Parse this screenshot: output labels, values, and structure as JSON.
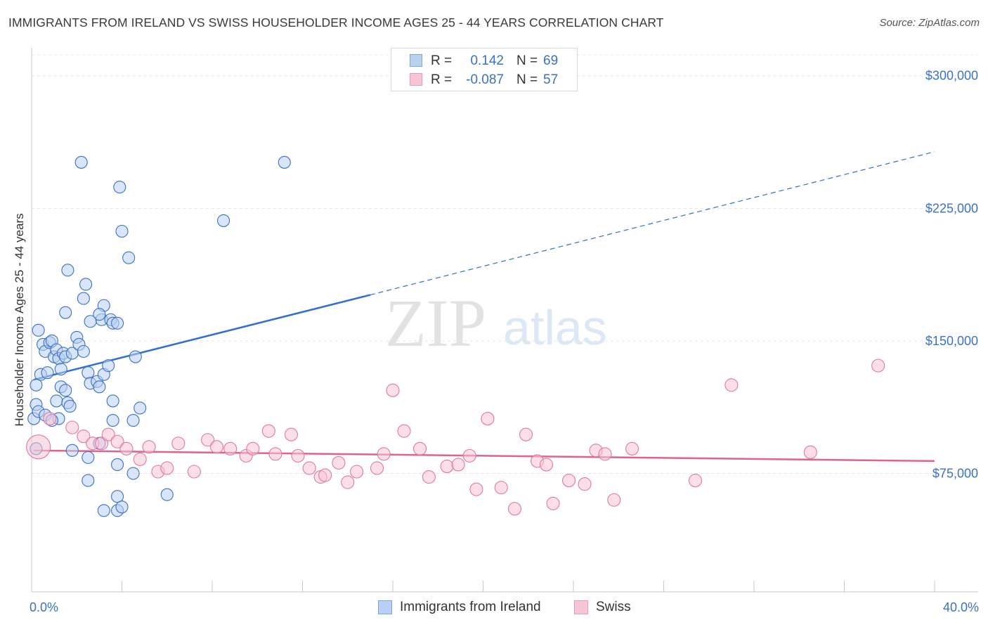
{
  "title": "IMMIGRANTS FROM IRELAND VS SWISS HOUSEHOLDER INCOME AGES 25 - 44 YEARS CORRELATION CHART",
  "source": "Source: ZipAtlas.com",
  "watermark": {
    "zip": "ZIP",
    "atlas": "atlas"
  },
  "colors": {
    "blue": "#3b72c4",
    "blue_fill": "#b9d0f3",
    "blue_line": "#3070d0",
    "pink": "#e0799d",
    "pink_fill": "#f8c5d5",
    "pink_line": "#e0628f"
  },
  "legend_top": {
    "rows": [
      {
        "r_label": "R =",
        "r_value": "0.142",
        "n_label": "N =",
        "n_value": "69"
      },
      {
        "r_label": "R =",
        "r_value": "-0.087",
        "n_label": "N =",
        "n_value": "57"
      }
    ]
  },
  "legend_bottom": {
    "items": [
      {
        "label": "Immigrants from Ireland"
      },
      {
        "label": "Swiss"
      }
    ]
  },
  "chart_data": {
    "type": "scatter",
    "title": "IMMIGRANTS FROM IRELAND VS SWISS HOUSEHOLDER INCOME AGES 25 - 44 YEARS CORRELATION CHART",
    "xlabel": "",
    "ylabel": "Householder Income Ages 25 - 44 years",
    "xlim": [
      0,
      40
    ],
    "ylim": [
      8000,
      315000
    ],
    "x_tick_labels": [
      {
        "value": 0,
        "label": "0.0%"
      },
      {
        "value": 40,
        "label": "40.0%"
      }
    ],
    "y_ticks": [
      {
        "value": 75000,
        "label": "$75,000"
      },
      {
        "value": 150000,
        "label": "$150,000"
      },
      {
        "value": 225000,
        "label": "$225,000"
      },
      {
        "value": 300000,
        "label": "$300,000"
      }
    ],
    "series": [
      {
        "name": "Immigrants from Ireland",
        "r": 0.142,
        "n": 69,
        "trend": {
          "x0": 0.1,
          "y0": 128000,
          "x1": 15,
          "y1": 176000,
          "x_ext": 40,
          "y_ext": 257000
        },
        "points": [
          [
            0.3,
            156000
          ],
          [
            0.5,
            148000
          ],
          [
            0.6,
            144000
          ],
          [
            0.8,
            149000
          ],
          [
            0.9,
            150000
          ],
          [
            1.0,
            141000
          ],
          [
            1.1,
            145000
          ],
          [
            1.2,
            140000
          ],
          [
            1.4,
            143000
          ],
          [
            1.5,
            141000
          ],
          [
            1.3,
            134000
          ],
          [
            0.4,
            131000
          ],
          [
            0.7,
            132000
          ],
          [
            0.2,
            125000
          ],
          [
            1.3,
            124000
          ],
          [
            1.5,
            122000
          ],
          [
            1.1,
            116000
          ],
          [
            1.6,
            115000
          ],
          [
            1.7,
            113000
          ],
          [
            0.2,
            114000
          ],
          [
            0.1,
            106000
          ],
          [
            1.2,
            106000
          ],
          [
            1.8,
            143000
          ],
          [
            2.0,
            152000
          ],
          [
            2.1,
            148000
          ],
          [
            2.3,
            144000
          ],
          [
            2.5,
            132000
          ],
          [
            2.6,
            126000
          ],
          [
            2.9,
            127000
          ],
          [
            3.0,
            124000
          ],
          [
            3.2,
            131000
          ],
          [
            3.2,
            170000
          ],
          [
            3.1,
            162000
          ],
          [
            3.5,
            162000
          ],
          [
            3.0,
            165000
          ],
          [
            2.6,
            161000
          ],
          [
            1.5,
            166000
          ],
          [
            1.6,
            190000
          ],
          [
            2.3,
            174000
          ],
          [
            2.4,
            182000
          ],
          [
            3.4,
            136000
          ],
          [
            3.6,
            116000
          ],
          [
            3.6,
            160000
          ],
          [
            3.8,
            160000
          ],
          [
            3.6,
            105000
          ],
          [
            4.5,
            105000
          ],
          [
            4.8,
            112000
          ],
          [
            4.6,
            141000
          ],
          [
            4.3,
            197000
          ],
          [
            4.0,
            212000
          ],
          [
            3.9,
            237000
          ],
          [
            2.2,
            251000
          ],
          [
            8.5,
            218000
          ],
          [
            11.2,
            251000
          ],
          [
            1.8,
            88000
          ],
          [
            2.5,
            84000
          ],
          [
            3.0,
            92000
          ],
          [
            3.8,
            80000
          ],
          [
            4.5,
            75000
          ],
          [
            2.5,
            71000
          ],
          [
            3.8,
            62000
          ],
          [
            6.0,
            63000
          ],
          [
            3.2,
            54000
          ],
          [
            3.8,
            54000
          ],
          [
            4.0,
            56000
          ],
          [
            0.2,
            89000
          ],
          [
            0.3,
            110000
          ],
          [
            0.6,
            108000
          ],
          [
            0.9,
            105000
          ]
        ]
      },
      {
        "name": "Swiss",
        "r": -0.087,
        "n": 57,
        "trend": {
          "x0": 0.1,
          "y0": 88000,
          "x1": 40,
          "y1": 82000
        },
        "points": [
          [
            0.3,
            90000
          ],
          [
            0.8,
            106000
          ],
          [
            1.8,
            101000
          ],
          [
            2.3,
            96000
          ],
          [
            2.7,
            92000
          ],
          [
            3.1,
            92000
          ],
          [
            3.4,
            97000
          ],
          [
            3.8,
            93000
          ],
          [
            4.2,
            89000
          ],
          [
            4.8,
            83000
          ],
          [
            5.2,
            90000
          ],
          [
            5.6,
            76000
          ],
          [
            6.0,
            78000
          ],
          [
            6.5,
            92000
          ],
          [
            7.2,
            76000
          ],
          [
            7.8,
            94000
          ],
          [
            8.2,
            90000
          ],
          [
            8.8,
            89000
          ],
          [
            9.5,
            85000
          ],
          [
            9.8,
            89000
          ],
          [
            10.5,
            99000
          ],
          [
            10.8,
            86000
          ],
          [
            11.5,
            97000
          ],
          [
            11.8,
            85000
          ],
          [
            12.3,
            78000
          ],
          [
            12.8,
            73000
          ],
          [
            13.0,
            74000
          ],
          [
            13.6,
            81000
          ],
          [
            14.0,
            70000
          ],
          [
            14.4,
            76000
          ],
          [
            15.3,
            78000
          ],
          [
            15.6,
            86000
          ],
          [
            16.0,
            122000
          ],
          [
            16.5,
            99000
          ],
          [
            17.2,
            89000
          ],
          [
            17.6,
            73000
          ],
          [
            18.4,
            79000
          ],
          [
            18.9,
            80000
          ],
          [
            19.4,
            85000
          ],
          [
            19.7,
            66000
          ],
          [
            20.2,
            106000
          ],
          [
            20.8,
            67000
          ],
          [
            21.4,
            55000
          ],
          [
            21.9,
            97000
          ],
          [
            22.4,
            82000
          ],
          [
            22.8,
            80000
          ],
          [
            23.1,
            58000
          ],
          [
            23.8,
            71000
          ],
          [
            24.5,
            69000
          ],
          [
            25.0,
            88000
          ],
          [
            25.4,
            86000
          ],
          [
            25.8,
            60000
          ],
          [
            26.6,
            89000
          ],
          [
            29.4,
            71000
          ],
          [
            31.0,
            125000
          ],
          [
            34.5,
            87000
          ],
          [
            37.5,
            136000
          ]
        ]
      }
    ]
  }
}
